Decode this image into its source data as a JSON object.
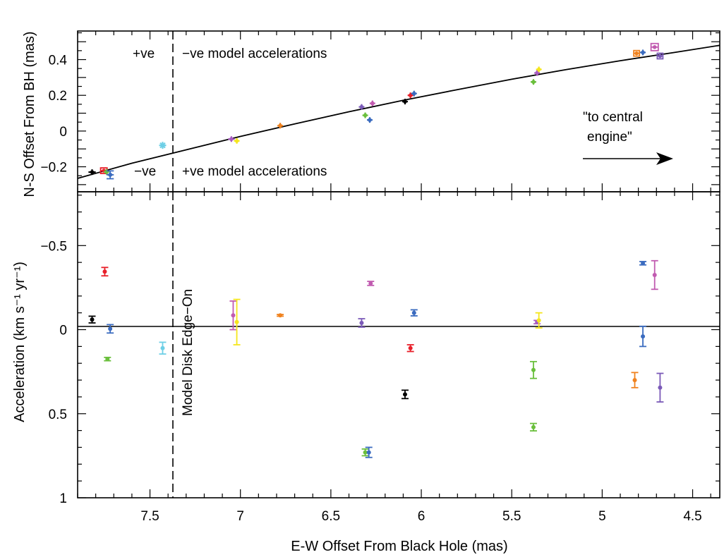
{
  "chart_data": [
    {
      "id": "top",
      "type": "scatter",
      "ylabel": "N-S Offset From BH (mas)",
      "xlim": [
        7.9,
        4.35
      ],
      "ylim": [
        -0.34,
        0.56
      ],
      "x_reversed": true,
      "grid": false,
      "yticks": [
        {
          "v": 0.4,
          "label": "0.4"
        },
        {
          "v": 0.2,
          "label": "0.2"
        },
        {
          "v": 0.0,
          "label": "0"
        },
        {
          "v": -0.2,
          "label": "−0.2"
        }
      ],
      "annotations": {
        "pos_left": "+ve",
        "neg_top": "−ve model accelerations",
        "neg_left": "−ve",
        "pos_bottom": "+ve model accelerations",
        "arrow_text_line1": "\"to central",
        "arrow_text_line2": "engine\""
      },
      "model_curve": [
        [
          7.9,
          -0.265
        ],
        [
          7.6,
          -0.18
        ],
        [
          7.3,
          -0.105
        ],
        [
          7.0,
          -0.03
        ],
        [
          6.7,
          0.04
        ],
        [
          6.4,
          0.108
        ],
        [
          6.1,
          0.172
        ],
        [
          5.8,
          0.232
        ],
        [
          5.5,
          0.29
        ],
        [
          5.2,
          0.344
        ],
        [
          4.9,
          0.394
        ],
        [
          4.6,
          0.44
        ],
        [
          4.35,
          0.48
        ]
      ],
      "points": [
        {
          "x": 7.82,
          "y": -0.23,
          "xerr": 0.02,
          "yerr": 0.008,
          "color": "#000000",
          "marker": "plus"
        },
        {
          "x": 7.755,
          "y": -0.222,
          "xerr": 0.018,
          "yerr": 0.015,
          "color": "#e8202a",
          "marker": "box"
        },
        {
          "x": 7.74,
          "y": -0.228,
          "xerr": 0.01,
          "yerr": 0.01,
          "color": "#6abf3c",
          "marker": "plus"
        },
        {
          "x": 7.72,
          "y": -0.245,
          "xerr": 0.02,
          "yerr": 0.022,
          "color": "#3a6bbf",
          "marker": "errbar"
        },
        {
          "x": 7.43,
          "y": -0.08,
          "xerr": 0.01,
          "yerr": 0.01,
          "color": "#6ecfe6",
          "marker": "star"
        },
        {
          "x": 7.05,
          "y": -0.045,
          "xerr": 0.018,
          "yerr": 0.008,
          "color": "#a85bc0",
          "marker": "plus"
        },
        {
          "x": 7.02,
          "y": -0.055,
          "xerr": 0.01,
          "yerr": 0.01,
          "color": "#f5e61e",
          "marker": "plus"
        },
        {
          "x": 6.78,
          "y": 0.03,
          "xerr": 0.012,
          "yerr": 0.01,
          "color": "#f0821e",
          "marker": "plus"
        },
        {
          "x": 6.33,
          "y": 0.135,
          "xerr": 0.015,
          "yerr": 0.01,
          "color": "#7b5ab8",
          "marker": "plus"
        },
        {
          "x": 6.31,
          "y": 0.088,
          "xerr": 0.012,
          "yerr": 0.01,
          "color": "#6abf3c",
          "marker": "plus"
        },
        {
          "x": 6.285,
          "y": 0.062,
          "xerr": 0.012,
          "yerr": 0.01,
          "color": "#3a6bbf",
          "marker": "plus"
        },
        {
          "x": 6.27,
          "y": 0.155,
          "xerr": 0.012,
          "yerr": 0.01,
          "color": "#c15bb0",
          "marker": "plus"
        },
        {
          "x": 6.09,
          "y": 0.165,
          "xerr": 0.015,
          "yerr": 0.01,
          "color": "#000000",
          "marker": "plus"
        },
        {
          "x": 6.06,
          "y": 0.2,
          "xerr": 0.012,
          "yerr": 0.01,
          "color": "#e8202a",
          "marker": "plus"
        },
        {
          "x": 6.04,
          "y": 0.21,
          "xerr": 0.012,
          "yerr": 0.01,
          "color": "#3a6bbf",
          "marker": "plus"
        },
        {
          "x": 5.38,
          "y": 0.275,
          "xerr": 0.015,
          "yerr": 0.01,
          "color": "#6abf3c",
          "marker": "plus"
        },
        {
          "x": 5.36,
          "y": 0.325,
          "xerr": 0.012,
          "yerr": 0.01,
          "color": "#a85bc0",
          "marker": "plus"
        },
        {
          "x": 5.35,
          "y": 0.345,
          "xerr": 0.01,
          "yerr": 0.01,
          "color": "#f5e61e",
          "marker": "plus"
        },
        {
          "x": 4.81,
          "y": 0.435,
          "xerr": 0.015,
          "yerr": 0.012,
          "color": "#f0821e",
          "marker": "box"
        },
        {
          "x": 4.775,
          "y": 0.44,
          "xerr": 0.012,
          "yerr": 0.01,
          "color": "#3a6bbf",
          "marker": "plus"
        },
        {
          "x": 4.71,
          "y": 0.47,
          "xerr": 0.02,
          "yerr": 0.02,
          "color": "#c15bb0",
          "marker": "box"
        },
        {
          "x": 4.68,
          "y": 0.42,
          "xerr": 0.015,
          "yerr": 0.015,
          "color": "#7b5ab8",
          "marker": "box"
        }
      ]
    },
    {
      "id": "bottom",
      "type": "scatter",
      "xlabel": "E-W Offset From Black Hole (mas)",
      "ylabel": "Acceleration (km s⁻¹ yr⁻¹)",
      "xlim": [
        7.9,
        4.35
      ],
      "ylim": [
        -0.82,
        1.0
      ],
      "x_reversed": true,
      "y_reversed": true,
      "grid": false,
      "xticks": [
        {
          "v": 7.5,
          "label": "7.5"
        },
        {
          "v": 7.0,
          "label": "7"
        },
        {
          "v": 6.5,
          "label": "6.5"
        },
        {
          "v": 6.0,
          "label": "6"
        },
        {
          "v": 5.5,
          "label": "5.5"
        },
        {
          "v": 5.0,
          "label": "5"
        },
        {
          "v": 4.5,
          "label": "4.5"
        }
      ],
      "yticks": [
        {
          "v": -0.5,
          "label": "−0.5"
        },
        {
          "v": 0.0,
          "label": "0"
        },
        {
          "v": 0.5,
          "label": "0.5"
        },
        {
          "v": 1.0,
          "label": "1"
        }
      ],
      "annotations": {
        "vertical_label": "Model Disk Edge−On"
      },
      "edge_on_x": 7.4,
      "points": [
        {
          "x": 7.82,
          "y": -0.06,
          "err": 0.02,
          "color": "#000000"
        },
        {
          "x": 7.75,
          "y": -0.345,
          "err": 0.025,
          "color": "#e8202a"
        },
        {
          "x": 7.735,
          "y": 0.175,
          "err": 0.01,
          "color": "#6abf3c"
        },
        {
          "x": 7.72,
          "y": -0.005,
          "err": 0.025,
          "color": "#3a6bbf"
        },
        {
          "x": 7.43,
          "y": 0.11,
          "err": 0.035,
          "color": "#6ecfe6"
        },
        {
          "x": 7.04,
          "y": -0.085,
          "err": 0.085,
          "color": "#c15bb0"
        },
        {
          "x": 7.02,
          "y": -0.045,
          "err": 0.135,
          "color": "#f5e61e"
        },
        {
          "x": 6.78,
          "y": -0.085,
          "err": 0.005,
          "color": "#f0821e"
        },
        {
          "x": 6.33,
          "y": -0.04,
          "err": 0.025,
          "color": "#7b5ab8"
        },
        {
          "x": 6.28,
          "y": -0.275,
          "err": 0.012,
          "color": "#c15bb0"
        },
        {
          "x": 6.06,
          "y": 0.11,
          "err": 0.02,
          "color": "#e8202a"
        },
        {
          "x": 6.04,
          "y": -0.1,
          "err": 0.018,
          "color": "#3a6bbf"
        },
        {
          "x": 6.09,
          "y": 0.385,
          "err": 0.025,
          "color": "#000000"
        },
        {
          "x": 6.31,
          "y": 0.73,
          "err": 0.02,
          "color": "#6abf3c"
        },
        {
          "x": 6.29,
          "y": 0.73,
          "err": 0.03,
          "color": "#3a6bbf"
        },
        {
          "x": 5.38,
          "y": 0.24,
          "err": 0.05,
          "color": "#6abf3c"
        },
        {
          "x": 5.38,
          "y": 0.58,
          "err": 0.022,
          "color": "#6abf3c"
        },
        {
          "x": 5.36,
          "y": -0.045,
          "err": 0.01,
          "color": "#a85bc0"
        },
        {
          "x": 5.35,
          "y": -0.055,
          "err": 0.045,
          "color": "#f5e61e"
        },
        {
          "x": 4.82,
          "y": 0.3,
          "err": 0.045,
          "color": "#f0821e"
        },
        {
          "x": 4.775,
          "y": 0.04,
          "err": 0.06,
          "color": "#3a6bbf"
        },
        {
          "x": 4.775,
          "y": -0.395,
          "err": 0.01,
          "color": "#3a6bbf"
        },
        {
          "x": 4.71,
          "y": -0.325,
          "err": 0.085,
          "color": "#c15bb0"
        },
        {
          "x": 4.68,
          "y": 0.345,
          "err": 0.085,
          "color": "#7b5ab8"
        }
      ]
    }
  ]
}
